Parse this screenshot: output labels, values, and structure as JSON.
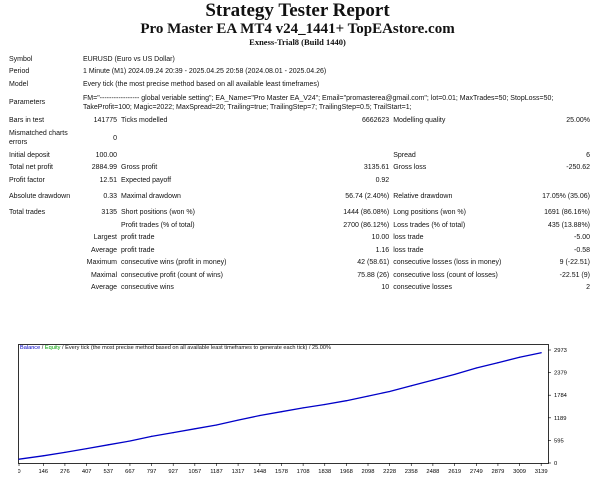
{
  "header": {
    "title": "Strategy Tester Report",
    "subtitle": "Pro Master EA MT4 v24_1441+ TopEAstore.com",
    "company": "Exness-Trial8 (Build 1440)"
  },
  "info": {
    "symbol_label": "Symbol",
    "symbol_value": "EURUSD (Euro vs US Dollar)",
    "period_label": "Period",
    "period_value": "1 Minute (M1) 2024.09.24 20:39 - 2025.04.25 20:58 (2024.08.01 - 2025.04.26)",
    "model_label": "Model",
    "model_value": "Every tick (the most precise method based on all available least timeframes)",
    "parameters_label": "Parameters",
    "parameters_value": "FM=\"----------------- global veriable setting\"; EA_Name=\"Pro Master EA_V24\"; Email=\"promasterea@gmail.com\"; lot=0.01; MaxTrades=50; StopLoss=50; TakeProfit=100; Magic=2022; MaxSpread=20; Trailing=true; TrailingStep=7; TrailingStep=0.5; TrailStart=1;"
  },
  "stats": {
    "bars_label": "Bars in test",
    "bars_value": "141775",
    "ticks_label": "Ticks modelled",
    "ticks_value": "6662623",
    "quality_label": "Modelling quality",
    "quality_value": "25.00%",
    "mismatch_label": "Mismatched charts errors",
    "mismatch_value": "0",
    "deposit_label": "Initial deposit",
    "deposit_value": "100.00",
    "spread_label": "Spread",
    "spread_value": "6",
    "netprofit_label": "Total net profit",
    "netprofit_value": "2884.99",
    "grossprofit_label": "Gross profit",
    "grossprofit_value": "3135.61",
    "grossloss_label": "Gross loss",
    "grossloss_value": "-250.62",
    "pf_label": "Profit factor",
    "pf_value": "12.51",
    "payoff_label": "Expected payoff",
    "payoff_value": "0.92",
    "absdd_label": "Absolute drawdown",
    "absdd_value": "0.33",
    "maxdd_label": "Maximal drawdown",
    "maxdd_value": "56.74 (2.40%)",
    "reldd_label": "Relative drawdown",
    "reldd_value": "17.05% (35.06)",
    "trades_label": "Total trades",
    "trades_value": "3135",
    "short_label": "Short positions (won %)",
    "short_value": "1444 (86.08%)",
    "long_label": "Long positions (won %)",
    "long_value": "1691 (86.16%)",
    "profittrades_label": "Profit trades (% of total)",
    "profittrades_value": "2700 (86.12%)",
    "losstrades_label": "Loss trades (% of total)",
    "losstrades_value": "435 (13.88%)",
    "largest_label": "Largest",
    "largest_profit_label": "profit trade",
    "largest_profit_value": "10.00",
    "largest_loss_label": "loss trade",
    "largest_loss_value": "-5.00",
    "average_label": "Average",
    "average_profit_label": "profit trade",
    "average_profit_value": "1.16",
    "average_loss_label": "loss trade",
    "average_loss_value": "-0.58",
    "maximum_label": "Maximum",
    "max_wins_label": "consecutive wins (profit in money)",
    "max_wins_value": "42 (58.61)",
    "max_losses_label": "consecutive losses (loss in money)",
    "max_losses_value": "9 (-22.51)",
    "maximal_label": "Maximal",
    "maximal_profit_label": "consecutive profit (count of wins)",
    "maximal_profit_value": "75.88 (26)",
    "maximal_loss_label": "consecutive loss (count of losses)",
    "maximal_loss_value": "-22.51 (9)",
    "average2_label": "Average",
    "avg_wins_label": "consecutive wins",
    "avg_wins_value": "10",
    "avg_losses_label": "consecutive losses",
    "avg_losses_value": "2"
  },
  "chart_header": {
    "balance": "Balance",
    "sep1": " / ",
    "equity": "Equity",
    "rest": " / Every tick (the most precise method based on all available least timeframes to generate each tick) / 25.00%"
  },
  "colors": {
    "balance": "#0000c8",
    "equity": "#00a000",
    "axis": "#000000",
    "grid": "#c0c0c0"
  },
  "chart_data": {
    "type": "line",
    "x_ticks": [
      "0",
      "146",
      "276",
      "407",
      "537",
      "667",
      "797",
      "927",
      "1057",
      "1187",
      "1317",
      "1448",
      "1578",
      "1708",
      "1838",
      "1968",
      "2098",
      "2228",
      "2358",
      "2488",
      "2619",
      "2749",
      "2879",
      "3009",
      "3139"
    ],
    "y_ticks": [
      "0",
      "595",
      "1189",
      "1784",
      "2379",
      "2973"
    ],
    "xlim": [
      0,
      3180
    ],
    "ylim": [
      0,
      2973
    ],
    "series": [
      {
        "name": "Balance",
        "x": [
          0,
          146,
          276,
          407,
          537,
          667,
          797,
          927,
          1057,
          1187,
          1317,
          1448,
          1578,
          1708,
          1838,
          1968,
          2098,
          2228,
          2358,
          2488,
          2619,
          2749,
          2879,
          3009,
          3139
        ],
        "y": [
          100,
          190,
          280,
          380,
          480,
          580,
          700,
          800,
          900,
          1000,
          1130,
          1250,
          1350,
          1450,
          1540,
          1640,
          1760,
          1880,
          2030,
          2180,
          2330,
          2500,
          2640,
          2780,
          2900
        ]
      }
    ]
  }
}
